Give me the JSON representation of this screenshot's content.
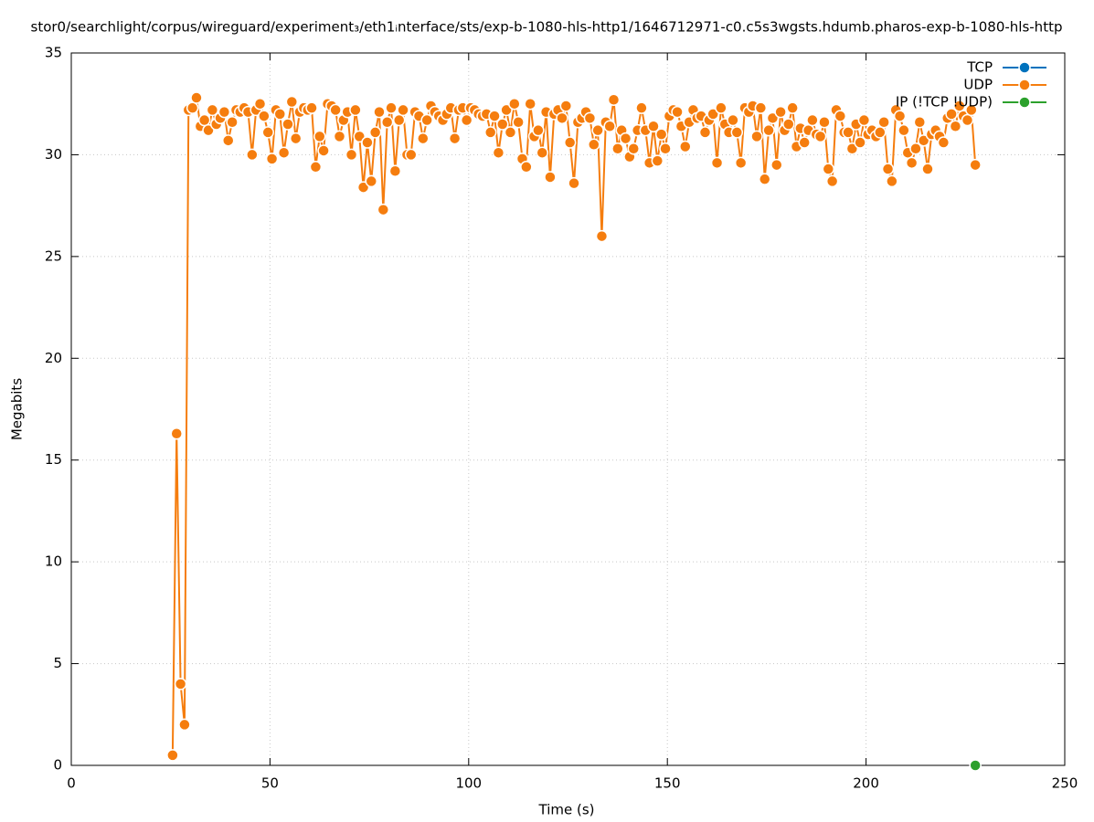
{
  "chart_data": {
    "type": "line",
    "title": "stor0/searchlight/corpus/wireguard/experiment₃/eth1ᵢnterface/sts/exp-b-1080-hls-http1/1646712971-c0.c5s3wgsts.hdumb.pharos-exp-b-1080-hls-http",
    "x_label": "Time (s)",
    "y_label": "Megabits",
    "xlim": [
      0,
      250
    ],
    "xticks": [
      0,
      50,
      100,
      150,
      200,
      250
    ],
    "ylim": [
      0,
      35
    ],
    "yticks": [
      0,
      5,
      10,
      15,
      20,
      25,
      30,
      35
    ],
    "grid": true,
    "legend": "top-right",
    "series": [
      {
        "name": "TCP",
        "color": "#0072bd",
        "x": [],
        "values": []
      },
      {
        "name": "UDP",
        "color": "#f57d0e",
        "x": [
          25.5,
          26.5,
          27.5,
          28.5,
          29.5,
          30.5,
          31.5,
          32.5,
          33.5,
          34.5,
          35.5,
          36.5,
          37.5,
          38.5,
          39.5,
          40.5,
          41.5,
          42.5,
          43.5,
          44.5,
          45.5,
          46.5,
          47.5,
          48.5,
          49.5,
          50.5,
          51.5,
          52.5,
          53.5,
          54.5,
          55.5,
          56.5,
          57.5,
          58.5,
          59.5,
          60.5,
          61.5,
          62.5,
          63.5,
          64.5,
          65.5,
          66.5,
          67.5,
          68.5,
          69.5,
          70.5,
          71.5,
          72.5,
          73.5,
          74.5,
          75.5,
          76.5,
          77.5,
          78.5,
          79.5,
          80.5,
          81.5,
          82.5,
          83.5,
          84.5,
          85.5,
          86.5,
          87.5,
          88.5,
          89.5,
          90.5,
          91.5,
          92.5,
          93.5,
          94.5,
          95.5,
          96.5,
          97.5,
          98.5,
          99.5,
          100.5,
          101.5,
          102.5,
          103.5,
          104.5,
          105.5,
          106.5,
          107.5,
          108.5,
          109.5,
          110.5,
          111.5,
          112.5,
          113.5,
          114.5,
          115.5,
          116.5,
          117.5,
          118.5,
          119.5,
          120.5,
          121.5,
          122.5,
          123.5,
          124.5,
          125.5,
          126.5,
          127.5,
          128.5,
          129.5,
          130.5,
          131.5,
          132.5,
          133.5,
          134.5,
          135.5,
          136.5,
          137.5,
          138.5,
          139.5,
          140.5,
          141.5,
          142.5,
          143.5,
          144.5,
          145.5,
          146.5,
          147.5,
          148.5,
          149.5,
          150.5,
          151.5,
          152.5,
          153.5,
          154.5,
          155.5,
          156.5,
          157.5,
          158.5,
          159.5,
          160.5,
          161.5,
          162.5,
          163.5,
          164.5,
          165.5,
          166.5,
          167.5,
          168.5,
          169.5,
          170.5,
          171.5,
          172.5,
          173.5,
          174.5,
          175.5,
          176.5,
          177.5,
          178.5,
          179.5,
          180.5,
          181.5,
          182.5,
          183.5,
          184.5,
          185.5,
          186.5,
          187.5,
          188.5,
          189.5,
          190.5,
          191.5,
          192.5,
          193.5,
          194.5,
          195.5,
          196.5,
          197.5,
          198.5,
          199.5,
          200.5,
          201.5,
          202.5,
          203.5,
          204.5,
          205.5,
          206.5,
          207.5,
          208.5,
          209.5,
          210.5,
          211.5,
          212.5,
          213.5,
          214.5,
          215.5,
          216.5,
          217.5,
          218.5,
          219.5,
          220.5,
          221.5,
          222.5,
          223.5,
          224.5,
          225.5,
          226.5,
          227.5
        ],
        "values": [
          0.5,
          16.3,
          4.0,
          2.0,
          32.2,
          32.3,
          32.8,
          31.4,
          31.7,
          31.2,
          32.2,
          31.5,
          31.8,
          32.1,
          30.7,
          31.6,
          32.2,
          32.1,
          32.3,
          32.1,
          30.0,
          32.2,
          32.5,
          31.9,
          31.1,
          29.8,
          32.2,
          32.0,
          30.1,
          31.5,
          32.6,
          30.8,
          32.1,
          32.3,
          32.2,
          32.3,
          29.4,
          30.9,
          30.2,
          32.5,
          32.4,
          32.2,
          30.9,
          31.7,
          32.1,
          30.0,
          32.2,
          30.9,
          28.4,
          30.6,
          28.7,
          31.1,
          32.1,
          27.3,
          31.6,
          32.3,
          29.2,
          31.7,
          32.2,
          30.0,
          30.0,
          32.1,
          31.9,
          30.8,
          31.7,
          32.4,
          32.1,
          31.9,
          31.7,
          32.0,
          32.3,
          30.8,
          32.2,
          32.3,
          31.7,
          32.3,
          32.2,
          32.0,
          31.9,
          32.0,
          31.1,
          31.9,
          30.1,
          31.5,
          32.2,
          31.1,
          32.5,
          31.6,
          29.8,
          29.4,
          32.5,
          30.9,
          31.2,
          30.1,
          32.1,
          28.9,
          32.0,
          32.2,
          31.8,
          32.4,
          30.6,
          28.6,
          31.6,
          31.8,
          32.1,
          31.8,
          30.5,
          31.2,
          26.0,
          31.6,
          31.4,
          32.7,
          30.3,
          31.2,
          30.8,
          29.9,
          30.3,
          31.2,
          32.3,
          31.2,
          29.6,
          31.4,
          29.7,
          31.0,
          30.3,
          31.9,
          32.2,
          32.1,
          31.4,
          30.4,
          31.6,
          32.2,
          31.8,
          31.9,
          31.1,
          31.7,
          32.0,
          29.6,
          32.3,
          31.5,
          31.1,
          31.7,
          31.1,
          29.6,
          32.3,
          32.1,
          32.4,
          30.9,
          32.3,
          28.8,
          31.2,
          31.8,
          29.5,
          32.1,
          31.2,
          31.5,
          32.3,
          30.4,
          31.3,
          30.6,
          31.2,
          31.7,
          31.0,
          30.9,
          31.6,
          29.3,
          28.7,
          32.2,
          31.9,
          31.1,
          31.1,
          30.3,
          31.5,
          30.6,
          31.7,
          31.0,
          31.2,
          30.9,
          31.1,
          31.6,
          29.3,
          28.7,
          32.2,
          31.9,
          31.2,
          30.1,
          29.6,
          30.3,
          31.6,
          30.7,
          29.3,
          31.0,
          31.2,
          30.9,
          30.6,
          31.8,
          32.0,
          31.4,
          32.4,
          31.9,
          31.7,
          32.2,
          29.5
        ]
      },
      {
        "name": "IP (!TCP  !UDP)",
        "color": "#2ca02c",
        "x": [
          227.5
        ],
        "values": [
          0
        ]
      }
    ]
  }
}
